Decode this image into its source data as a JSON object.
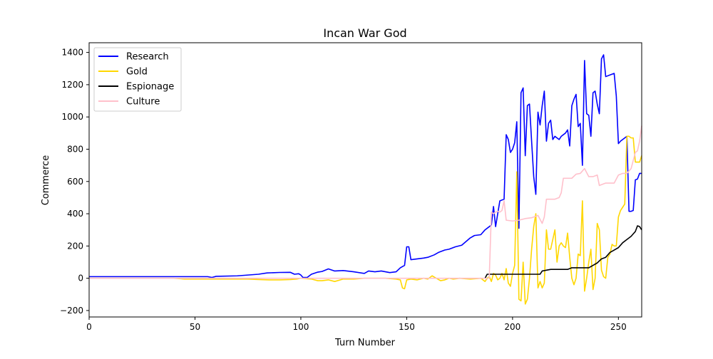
{
  "chart_data": {
    "type": "line",
    "title": "Incan War God",
    "xlabel": "Turn Number",
    "ylabel": "Commerce",
    "xlim": [
      0,
      261
    ],
    "ylim": [
      -240,
      1460
    ],
    "x_ticks": [
      0,
      50,
      100,
      150,
      200,
      250
    ],
    "y_ticks": [
      -200,
      0,
      200,
      400,
      600,
      800,
      1000,
      1200,
      1400
    ],
    "grid": false,
    "legend_position": "top-left",
    "series": [
      {
        "name": "Research",
        "color": "#0000ff",
        "points": [
          [
            0,
            10
          ],
          [
            20,
            10
          ],
          [
            40,
            10
          ],
          [
            56,
            10
          ],
          [
            58,
            5
          ],
          [
            60,
            12
          ],
          [
            70,
            15
          ],
          [
            75,
            20
          ],
          [
            80,
            25
          ],
          [
            84,
            33
          ],
          [
            90,
            36
          ],
          [
            95,
            37
          ],
          [
            97,
            25
          ],
          [
            99,
            28
          ],
          [
            100,
            20
          ],
          [
            101,
            5
          ],
          [
            103,
            5
          ],
          [
            105,
            25
          ],
          [
            108,
            38
          ],
          [
            110,
            42
          ],
          [
            113,
            58
          ],
          [
            116,
            45
          ],
          [
            120,
            48
          ],
          [
            125,
            40
          ],
          [
            130,
            30
          ],
          [
            132,
            45
          ],
          [
            135,
            40
          ],
          [
            138,
            45
          ],
          [
            140,
            40
          ],
          [
            142,
            35
          ],
          [
            145,
            40
          ],
          [
            147,
            65
          ],
          [
            149,
            80
          ],
          [
            150,
            195
          ],
          [
            151,
            195
          ],
          [
            152,
            115
          ],
          [
            155,
            120
          ],
          [
            158,
            125
          ],
          [
            160,
            130
          ],
          [
            163,
            145
          ],
          [
            165,
            160
          ],
          [
            168,
            175
          ],
          [
            170,
            180
          ],
          [
            173,
            195
          ],
          [
            176,
            205
          ],
          [
            180,
            250
          ],
          [
            182,
            265
          ],
          [
            185,
            270
          ],
          [
            187,
            300
          ],
          [
            189,
            320
          ],
          [
            190,
            330
          ],
          [
            191,
            445
          ],
          [
            192,
            320
          ],
          [
            194,
            480
          ],
          [
            196,
            490
          ],
          [
            197,
            890
          ],
          [
            198,
            860
          ],
          [
            199,
            780
          ],
          [
            200,
            800
          ],
          [
            201,
            840
          ],
          [
            202,
            970
          ],
          [
            203,
            310
          ],
          [
            204,
            1150
          ],
          [
            205,
            1180
          ],
          [
            206,
            760
          ],
          [
            207,
            1070
          ],
          [
            208,
            1080
          ],
          [
            209,
            850
          ],
          [
            210,
            630
          ],
          [
            211,
            520
          ],
          [
            212,
            1030
          ],
          [
            213,
            950
          ],
          [
            214,
            1070
          ],
          [
            215,
            1160
          ],
          [
            216,
            850
          ],
          [
            217,
            960
          ],
          [
            218,
            980
          ],
          [
            219,
            860
          ],
          [
            220,
            880
          ],
          [
            222,
            860
          ],
          [
            223,
            880
          ],
          [
            225,
            900
          ],
          [
            226,
            920
          ],
          [
            227,
            820
          ],
          [
            228,
            1070
          ],
          [
            229,
            1110
          ],
          [
            230,
            1140
          ],
          [
            231,
            940
          ],
          [
            232,
            960
          ],
          [
            233,
            700
          ],
          [
            234,
            1350
          ],
          [
            235,
            1020
          ],
          [
            236,
            1010
          ],
          [
            237,
            880
          ],
          [
            238,
            1150
          ],
          [
            239,
            1160
          ],
          [
            240,
            1080
          ],
          [
            241,
            1020
          ],
          [
            242,
            1360
          ],
          [
            243,
            1385
          ],
          [
            244,
            1250
          ],
          [
            246,
            1260
          ],
          [
            248,
            1270
          ],
          [
            249,
            1130
          ],
          [
            250,
            835
          ],
          [
            251,
            850
          ],
          [
            252,
            860
          ],
          [
            253,
            870
          ],
          [
            254,
            880
          ],
          [
            255,
            415
          ],
          [
            256,
            415
          ],
          [
            257,
            420
          ],
          [
            258,
            610
          ],
          [
            259,
            615
          ],
          [
            260,
            650
          ],
          [
            261,
            650
          ]
        ]
      },
      {
        "name": "Gold",
        "color": "#ffd700",
        "points": [
          [
            0,
            0
          ],
          [
            40,
            0
          ],
          [
            45,
            -5
          ],
          [
            50,
            -5
          ],
          [
            60,
            -5
          ],
          [
            70,
            -5
          ],
          [
            75,
            -5
          ],
          [
            80,
            -8
          ],
          [
            85,
            -10
          ],
          [
            90,
            -10
          ],
          [
            95,
            -8
          ],
          [
            98,
            -5
          ],
          [
            100,
            0
          ],
          [
            105,
            -5
          ],
          [
            108,
            -15
          ],
          [
            110,
            -15
          ],
          [
            113,
            -10
          ],
          [
            116,
            -20
          ],
          [
            120,
            -5
          ],
          [
            125,
            -5
          ],
          [
            130,
            0
          ],
          [
            140,
            0
          ],
          [
            145,
            -5
          ],
          [
            147,
            -10
          ],
          [
            148,
            -60
          ],
          [
            149,
            -65
          ],
          [
            150,
            -10
          ],
          [
            152,
            -5
          ],
          [
            155,
            -10
          ],
          [
            158,
            0
          ],
          [
            160,
            -5
          ],
          [
            162,
            15
          ],
          [
            164,
            0
          ],
          [
            166,
            -15
          ],
          [
            168,
            -10
          ],
          [
            170,
            0
          ],
          [
            172,
            -5
          ],
          [
            175,
            0
          ],
          [
            180,
            -5
          ],
          [
            185,
            0
          ],
          [
            187,
            -20
          ],
          [
            188,
            0
          ],
          [
            189,
            10
          ],
          [
            190,
            -20
          ],
          [
            191,
            30
          ],
          [
            192,
            20
          ],
          [
            193,
            -10
          ],
          [
            194,
            0
          ],
          [
            195,
            30
          ],
          [
            196,
            -10
          ],
          [
            197,
            60
          ],
          [
            198,
            -30
          ],
          [
            199,
            -50
          ],
          [
            200,
            30
          ],
          [
            201,
            80
          ],
          [
            202,
            660
          ],
          [
            203,
            -130
          ],
          [
            204,
            -140
          ],
          [
            205,
            100
          ],
          [
            206,
            -160
          ],
          [
            207,
            -130
          ],
          [
            208,
            0
          ],
          [
            209,
            180
          ],
          [
            210,
            320
          ],
          [
            211,
            400
          ],
          [
            212,
            -60
          ],
          [
            213,
            -20
          ],
          [
            214,
            -60
          ],
          [
            215,
            -30
          ],
          [
            216,
            300
          ],
          [
            217,
            180
          ],
          [
            218,
            180
          ],
          [
            219,
            240
          ],
          [
            220,
            300
          ],
          [
            221,
            100
          ],
          [
            222,
            200
          ],
          [
            223,
            220
          ],
          [
            224,
            200
          ],
          [
            225,
            190
          ],
          [
            226,
            280
          ],
          [
            227,
            130
          ],
          [
            228,
            0
          ],
          [
            229,
            -40
          ],
          [
            230,
            0
          ],
          [
            231,
            150
          ],
          [
            232,
            140
          ],
          [
            233,
            480
          ],
          [
            234,
            -80
          ],
          [
            235,
            0
          ],
          [
            236,
            100
          ],
          [
            237,
            180
          ],
          [
            238,
            -70
          ],
          [
            239,
            0
          ],
          [
            240,
            340
          ],
          [
            241,
            300
          ],
          [
            242,
            50
          ],
          [
            243,
            10
          ],
          [
            244,
            0
          ],
          [
            245,
            130
          ],
          [
            246,
            150
          ],
          [
            247,
            210
          ],
          [
            248,
            200
          ],
          [
            249,
            200
          ],
          [
            250,
            380
          ],
          [
            251,
            420
          ],
          [
            252,
            440
          ],
          [
            253,
            460
          ],
          [
            254,
            880
          ],
          [
            255,
            880
          ],
          [
            256,
            870
          ],
          [
            257,
            870
          ],
          [
            258,
            720
          ],
          [
            259,
            720
          ],
          [
            260,
            720
          ],
          [
            261,
            760
          ]
        ]
      },
      {
        "name": "Espionage",
        "color": "#000000",
        "points": [
          [
            187,
            0
          ],
          [
            188,
            25
          ],
          [
            190,
            25
          ],
          [
            200,
            25
          ],
          [
            210,
            25
          ],
          [
            213,
            25
          ],
          [
            214,
            45
          ],
          [
            216,
            50
          ],
          [
            218,
            55
          ],
          [
            220,
            55
          ],
          [
            226,
            55
          ],
          [
            228,
            65
          ],
          [
            232,
            65
          ],
          [
            234,
            65
          ],
          [
            236,
            65
          ],
          [
            238,
            80
          ],
          [
            240,
            95
          ],
          [
            242,
            120
          ],
          [
            244,
            130
          ],
          [
            246,
            160
          ],
          [
            248,
            175
          ],
          [
            250,
            190
          ],
          [
            252,
            220
          ],
          [
            254,
            240
          ],
          [
            256,
            260
          ],
          [
            258,
            290
          ],
          [
            259,
            325
          ],
          [
            260,
            320
          ],
          [
            261,
            300
          ]
        ]
      },
      {
        "name": "Culture",
        "color": "#ffc0cb",
        "points": [
          [
            0,
            0
          ],
          [
            100,
            0
          ],
          [
            140,
            0
          ],
          [
            187,
            0
          ],
          [
            188,
            -5
          ],
          [
            189,
            5
          ],
          [
            190,
            410
          ],
          [
            191,
            400
          ],
          [
            192,
            410
          ],
          [
            193,
            415
          ],
          [
            194,
            410
          ],
          [
            195,
            420
          ],
          [
            196,
            480
          ],
          [
            197,
            360
          ],
          [
            200,
            355
          ],
          [
            203,
            360
          ],
          [
            206,
            370
          ],
          [
            209,
            375
          ],
          [
            212,
            390
          ],
          [
            214,
            340
          ],
          [
            215,
            380
          ],
          [
            216,
            490
          ],
          [
            220,
            490
          ],
          [
            222,
            500
          ],
          [
            223,
            530
          ],
          [
            224,
            620
          ],
          [
            226,
            620
          ],
          [
            228,
            620
          ],
          [
            230,
            645
          ],
          [
            232,
            650
          ],
          [
            234,
            680
          ],
          [
            236,
            630
          ],
          [
            238,
            630
          ],
          [
            240,
            640
          ],
          [
            241,
            575
          ],
          [
            242,
            580
          ],
          [
            244,
            590
          ],
          [
            246,
            590
          ],
          [
            248,
            590
          ],
          [
            250,
            640
          ],
          [
            252,
            650
          ],
          [
            254,
            650
          ],
          [
            256,
            680
          ],
          [
            258,
            780
          ],
          [
            259,
            790
          ],
          [
            260,
            850
          ],
          [
            261,
            945
          ]
        ]
      }
    ]
  }
}
